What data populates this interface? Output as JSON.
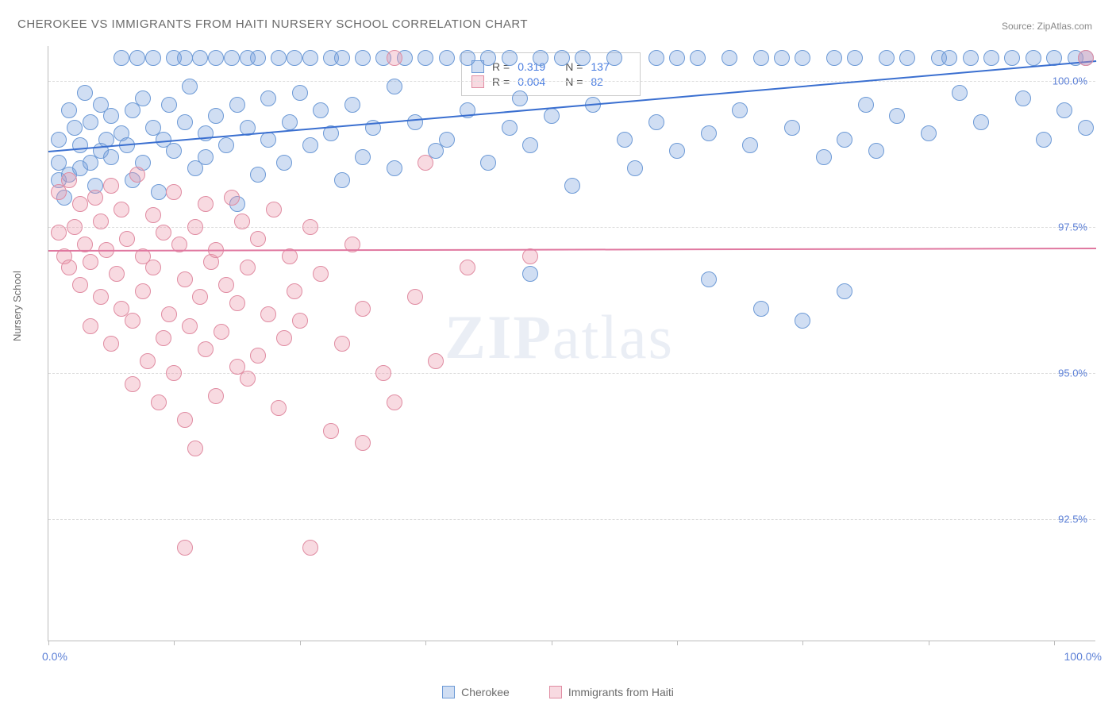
{
  "title": "CHEROKEE VS IMMIGRANTS FROM HAITI NURSERY SCHOOL CORRELATION CHART",
  "source": "Source: ZipAtlas.com",
  "ylabel": "Nursery School",
  "watermark_bold": "ZIP",
  "watermark_light": "atlas",
  "chart": {
    "type": "scatter",
    "background_color": "#ffffff",
    "grid_color": "#dddddd",
    "xlim": [
      0,
      100
    ],
    "ylim": [
      90.4,
      100.6
    ],
    "ytick_values": [
      92.5,
      95.0,
      97.5,
      100.0
    ],
    "ytick_labels": [
      "92.5%",
      "95.0%",
      "97.5%",
      "100.0%"
    ],
    "xtick_positions": [
      0,
      12,
      24,
      36,
      48,
      60,
      72,
      84,
      96
    ],
    "xaxis_left_label": "0.0%",
    "xaxis_right_label": "100.0%",
    "marker_radius": 10,
    "marker_stroke_width": 1.5,
    "series": [
      {
        "name": "Cherokee",
        "color_fill": "rgba(120,160,220,0.35)",
        "color_stroke": "#6d9ad6",
        "R": "0.319",
        "N": "137",
        "trend": {
          "x1": 0,
          "y1": 98.8,
          "x2": 100,
          "y2": 100.35,
          "color": "#3a6fd0",
          "width": 2
        },
        "points": [
          [
            1,
            98.3
          ],
          [
            1,
            98.6
          ],
          [
            1,
            99.0
          ],
          [
            1.5,
            98.0
          ],
          [
            2,
            99.5
          ],
          [
            2,
            98.4
          ],
          [
            2.5,
            99.2
          ],
          [
            3,
            98.9
          ],
          [
            3,
            98.5
          ],
          [
            3.5,
            99.8
          ],
          [
            4,
            98.6
          ],
          [
            4,
            99.3
          ],
          [
            4.5,
            98.2
          ],
          [
            5,
            99.6
          ],
          [
            5,
            98.8
          ],
          [
            5.5,
            99.0
          ],
          [
            6,
            99.4
          ],
          [
            6,
            98.7
          ],
          [
            7,
            99.1
          ],
          [
            7,
            100.4
          ],
          [
            7.5,
            98.9
          ],
          [
            8,
            99.5
          ],
          [
            8,
            98.3
          ],
          [
            8.5,
            100.4
          ],
          [
            9,
            99.7
          ],
          [
            9,
            98.6
          ],
          [
            10,
            99.2
          ],
          [
            10,
            100.4
          ],
          [
            10.5,
            98.1
          ],
          [
            11,
            99.0
          ],
          [
            11.5,
            99.6
          ],
          [
            12,
            100.4
          ],
          [
            12,
            98.8
          ],
          [
            13,
            99.3
          ],
          [
            13,
            100.4
          ],
          [
            13.5,
            99.9
          ],
          [
            14,
            98.5
          ],
          [
            14.5,
            100.4
          ],
          [
            15,
            99.1
          ],
          [
            15,
            98.7
          ],
          [
            16,
            100.4
          ],
          [
            16,
            99.4
          ],
          [
            17,
            98.9
          ],
          [
            17.5,
            100.4
          ],
          [
            18,
            99.6
          ],
          [
            18,
            97.9
          ],
          [
            19,
            100.4
          ],
          [
            19,
            99.2
          ],
          [
            20,
            98.4
          ],
          [
            20,
            100.4
          ],
          [
            21,
            99.7
          ],
          [
            21,
            99.0
          ],
          [
            22,
            100.4
          ],
          [
            22.5,
            98.6
          ],
          [
            23,
            99.3
          ],
          [
            23.5,
            100.4
          ],
          [
            24,
            99.8
          ],
          [
            25,
            100.4
          ],
          [
            25,
            98.9
          ],
          [
            26,
            99.5
          ],
          [
            27,
            100.4
          ],
          [
            27,
            99.1
          ],
          [
            28,
            98.3
          ],
          [
            28,
            100.4
          ],
          [
            29,
            99.6
          ],
          [
            30,
            100.4
          ],
          [
            30,
            98.7
          ],
          [
            31,
            99.2
          ],
          [
            32,
            100.4
          ],
          [
            33,
            99.9
          ],
          [
            33,
            98.5
          ],
          [
            34,
            100.4
          ],
          [
            35,
            99.3
          ],
          [
            36,
            100.4
          ],
          [
            37,
            98.8
          ],
          [
            38,
            100.4
          ],
          [
            38,
            99.0
          ],
          [
            40,
            100.4
          ],
          [
            40,
            99.5
          ],
          [
            42,
            100.4
          ],
          [
            42,
            98.6
          ],
          [
            44,
            100.4
          ],
          [
            44,
            99.2
          ],
          [
            45,
            99.7
          ],
          [
            46,
            98.9
          ],
          [
            47,
            100.4
          ],
          [
            48,
            99.4
          ],
          [
            49,
            100.4
          ],
          [
            50,
            98.2
          ],
          [
            51,
            100.4
          ],
          [
            52,
            99.6
          ],
          [
            54,
            100.4
          ],
          [
            55,
            99.0
          ],
          [
            56,
            98.5
          ],
          [
            58,
            100.4
          ],
          [
            58,
            99.3
          ],
          [
            60,
            100.4
          ],
          [
            60,
            98.8
          ],
          [
            62,
            100.4
          ],
          [
            63,
            99.1
          ],
          [
            65,
            100.4
          ],
          [
            66,
            99.5
          ],
          [
            67,
            98.9
          ],
          [
            68,
            100.4
          ],
          [
            70,
            100.4
          ],
          [
            71,
            99.2
          ],
          [
            72,
            100.4
          ],
          [
            74,
            98.7
          ],
          [
            75,
            100.4
          ],
          [
            76,
            99.0
          ],
          [
            77,
            100.4
          ],
          [
            78,
            99.6
          ],
          [
            79,
            98.8
          ],
          [
            80,
            100.4
          ],
          [
            81,
            99.4
          ],
          [
            82,
            100.4
          ],
          [
            84,
            99.1
          ],
          [
            85,
            100.4
          ],
          [
            86,
            100.4
          ],
          [
            87,
            99.8
          ],
          [
            88,
            100.4
          ],
          [
            89,
            99.3
          ],
          [
            90,
            100.4
          ],
          [
            63,
            96.6
          ],
          [
            68,
            96.1
          ],
          [
            76,
            96.4
          ],
          [
            92,
            100.4
          ],
          [
            93,
            99.7
          ],
          [
            94,
            100.4
          ],
          [
            95,
            99.0
          ],
          [
            96,
            100.4
          ],
          [
            97,
            99.5
          ],
          [
            98,
            100.4
          ],
          [
            99,
            99.2
          ],
          [
            99,
            100.4
          ],
          [
            46,
            96.7
          ],
          [
            72,
            95.9
          ]
        ]
      },
      {
        "name": "Immigrants from Haiti",
        "color_fill": "rgba(235,150,170,0.35)",
        "color_stroke": "#e08ca2",
        "R": "0.004",
        "N": "82",
        "trend": {
          "x1": 0,
          "y1": 97.1,
          "x2": 100,
          "y2": 97.14,
          "color": "#e078a0",
          "width": 1.5
        },
        "points": [
          [
            1,
            98.1
          ],
          [
            1,
            97.4
          ],
          [
            1.5,
            97.0
          ],
          [
            2,
            96.8
          ],
          [
            2,
            98.3
          ],
          [
            2.5,
            97.5
          ],
          [
            3,
            96.5
          ],
          [
            3,
            97.9
          ],
          [
            3.5,
            97.2
          ],
          [
            4,
            96.9
          ],
          [
            4,
            95.8
          ],
          [
            4.5,
            98.0
          ],
          [
            5,
            97.6
          ],
          [
            5,
            96.3
          ],
          [
            5.5,
            97.1
          ],
          [
            6,
            98.2
          ],
          [
            6,
            95.5
          ],
          [
            6.5,
            96.7
          ],
          [
            7,
            97.8
          ],
          [
            7,
            96.1
          ],
          [
            7.5,
            97.3
          ],
          [
            8,
            95.9
          ],
          [
            8,
            94.8
          ],
          [
            8.5,
            98.4
          ],
          [
            9,
            97.0
          ],
          [
            9,
            96.4
          ],
          [
            9.5,
            95.2
          ],
          [
            10,
            97.7
          ],
          [
            10,
            96.8
          ],
          [
            10.5,
            94.5
          ],
          [
            11,
            97.4
          ],
          [
            11,
            95.6
          ],
          [
            11.5,
            96.0
          ],
          [
            12,
            98.1
          ],
          [
            12,
            95.0
          ],
          [
            12.5,
            97.2
          ],
          [
            13,
            96.6
          ],
          [
            13,
            94.2
          ],
          [
            13.5,
            95.8
          ],
          [
            14,
            97.5
          ],
          [
            14,
            93.7
          ],
          [
            14.5,
            96.3
          ],
          [
            15,
            97.9
          ],
          [
            15,
            95.4
          ],
          [
            15.5,
            96.9
          ],
          [
            16,
            94.6
          ],
          [
            16,
            97.1
          ],
          [
            16.5,
            95.7
          ],
          [
            17,
            96.5
          ],
          [
            17.5,
            98.0
          ],
          [
            18,
            95.1
          ],
          [
            18,
            96.2
          ],
          [
            18.5,
            97.6
          ],
          [
            19,
            94.9
          ],
          [
            19,
            96.8
          ],
          [
            20,
            95.3
          ],
          [
            20,
            97.3
          ],
          [
            21,
            96.0
          ],
          [
            21.5,
            97.8
          ],
          [
            22,
            94.4
          ],
          [
            22.5,
            95.6
          ],
          [
            23,
            97.0
          ],
          [
            23.5,
            96.4
          ],
          [
            24,
            95.9
          ],
          [
            25,
            92.0
          ],
          [
            25,
            97.5
          ],
          [
            26,
            96.7
          ],
          [
            27,
            94.0
          ],
          [
            28,
            95.5
          ],
          [
            29,
            97.2
          ],
          [
            30,
            93.8
          ],
          [
            30,
            96.1
          ],
          [
            32,
            95.0
          ],
          [
            33,
            100.4
          ],
          [
            33,
            94.5
          ],
          [
            35,
            96.3
          ],
          [
            36,
            98.6
          ],
          [
            37,
            95.2
          ],
          [
            40,
            96.8
          ],
          [
            13,
            92.0
          ],
          [
            46,
            97.0
          ],
          [
            99,
            100.4
          ]
        ]
      }
    ]
  },
  "legend": {
    "series1": "Cherokee",
    "series2": "Immigrants from Haiti"
  },
  "stats_labels": {
    "R": "R =",
    "N": "N ="
  }
}
